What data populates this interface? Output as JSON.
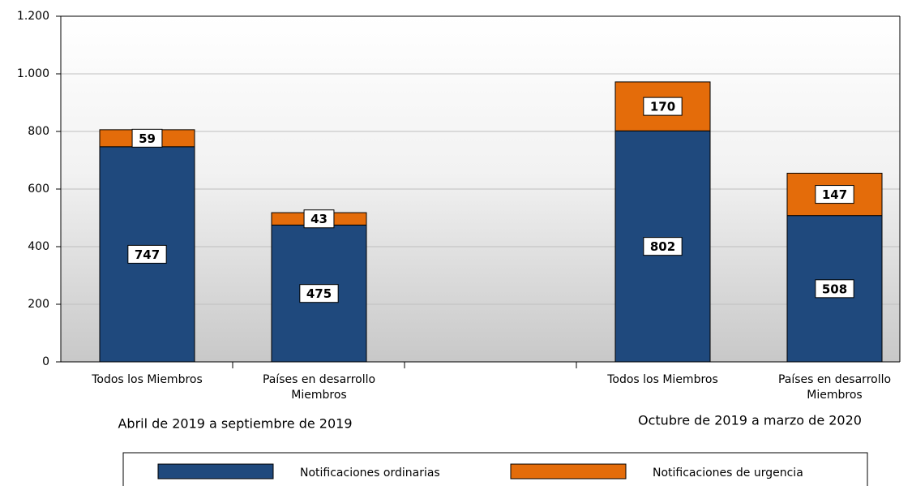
{
  "chart_data": {
    "type": "stacked-bar",
    "categories": [
      "Todos los Miembros",
      "Países en desarrollo Miembros",
      null,
      "Todos los Miembros",
      "Países en desarrollo Miembros"
    ],
    "groups": [
      "Abril de 2019 a septiembre de 2019",
      "Octubre de 2019 a marzo de 2020"
    ],
    "series": [
      {
        "name": "Notificaciones ordinarias",
        "color": "#1f497d",
        "values": [
          747,
          475,
          null,
          802,
          508
        ]
      },
      {
        "name": "Notificaciones de urgencia",
        "color": "#e46c0a",
        "values": [
          59,
          43,
          null,
          170,
          147
        ]
      }
    ],
    "ylim": [
      0,
      1200
    ],
    "yticks": [
      0,
      200,
      400,
      600,
      800,
      {
        "value": 1000,
        "label": "1.000"
      },
      {
        "value": 1200,
        "label": "1.200"
      }
    ],
    "grid": true,
    "legend": "bottom"
  }
}
